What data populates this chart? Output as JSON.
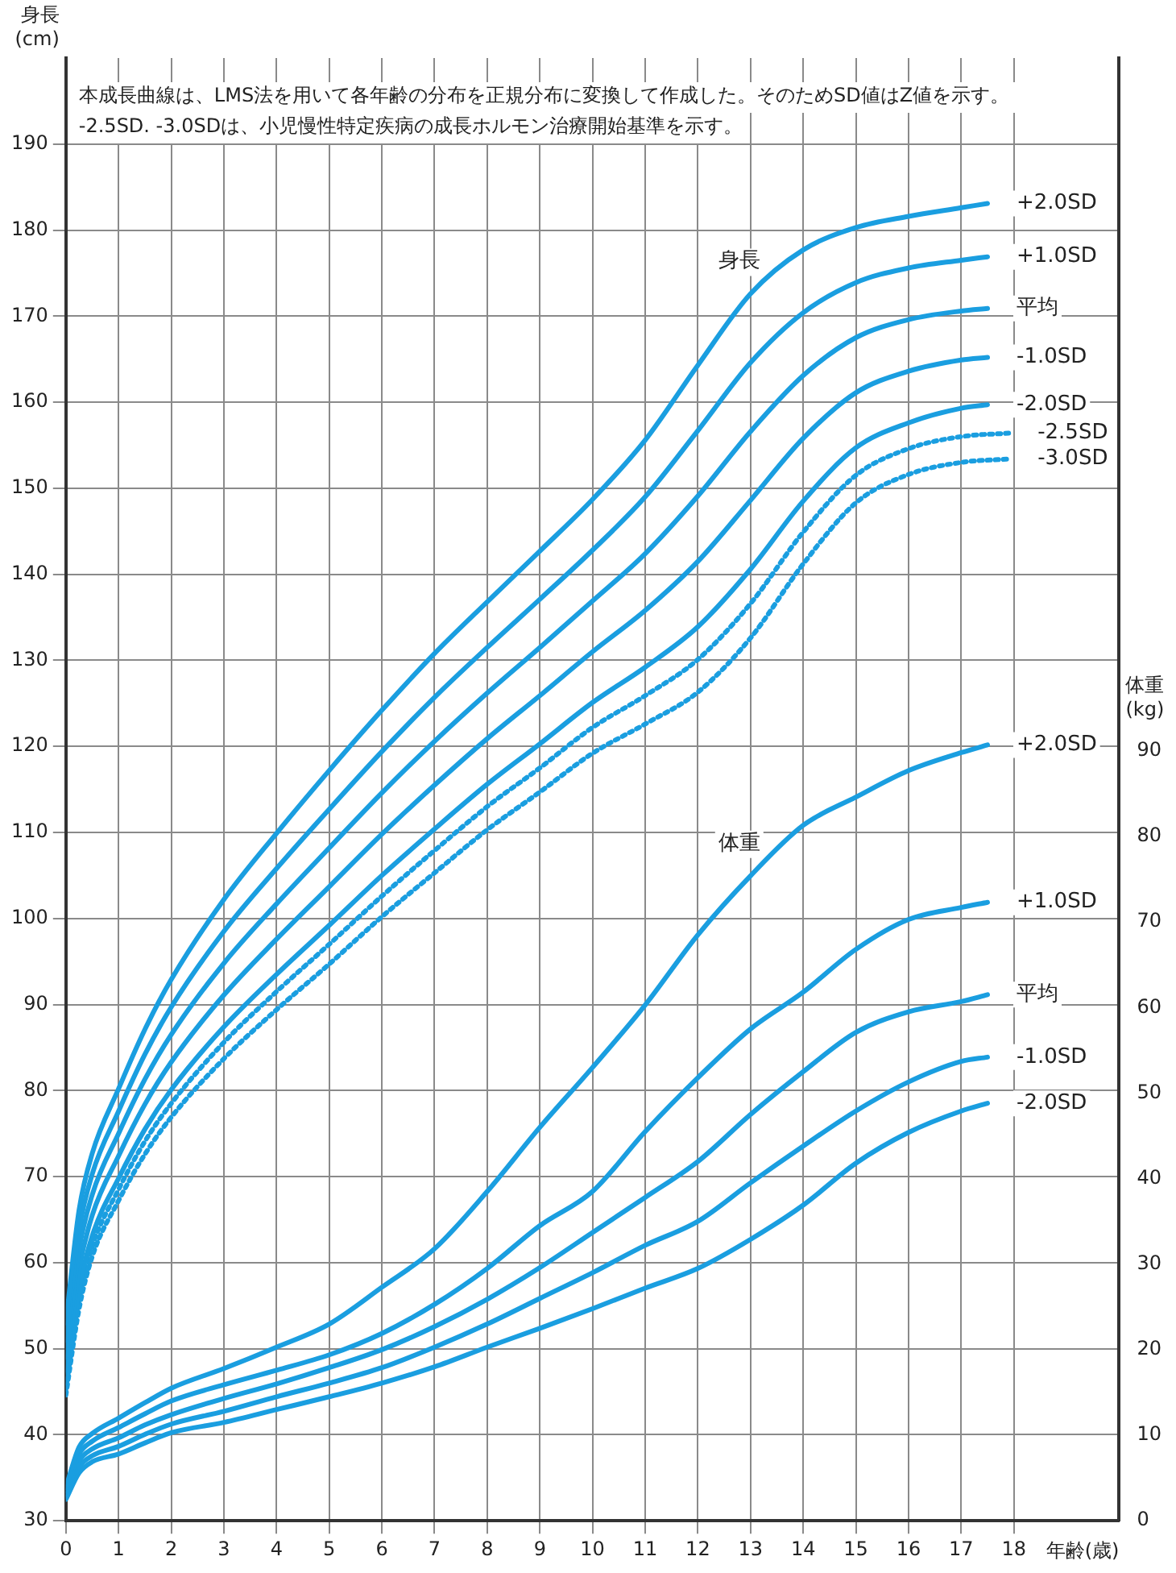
{
  "chart_data": {
    "type": "line",
    "ylabel": "身長(cm)",
    "y2label": "体重(kg)",
    "xlabel": "年齢(歳)",
    "annotations": [
      "本成長曲線は、LMS法を用いて各年齢の分布を正規分布に変換して作成した。そのためSD値はZ値を示す。",
      "-2.5SD. -3.0SDは、小児慢性特定疾病の成長ホルモン治療開始基準を示す。",
      "身長",
      "体重"
    ],
    "x": [
      0,
      0.25,
      0.5,
      1,
      1.5,
      2,
      3,
      4,
      5,
      6,
      7,
      8,
      9,
      10,
      11,
      12,
      13,
      14,
      15,
      16,
      17,
      17.5
    ],
    "xlim": [
      0,
      20
    ],
    "xticks": [
      0,
      1,
      2,
      3,
      4,
      5,
      6,
      7,
      8,
      9,
      10,
      11,
      12,
      13,
      14,
      15,
      16,
      17,
      18
    ],
    "ylim": [
      30,
      200
    ],
    "yticks": [
      30,
      40,
      50,
      60,
      70,
      80,
      90,
      100,
      110,
      120,
      130,
      140,
      150,
      160,
      170,
      180,
      190
    ],
    "y2lim": [
      0,
      171
    ],
    "y2ticks": [
      0,
      10,
      20,
      30,
      40,
      50,
      60,
      70,
      80,
      90
    ],
    "grid": true,
    "legend": false,
    "marker": "none",
    "series": [
      {
        "name": "+2.0SD",
        "color": "#1a9ee0",
        "values": [
          53.0,
          66.1,
          72.7,
          80.2,
          87.1,
          92.9,
          102.2,
          109.9,
          117.2,
          124.2,
          130.8,
          136.8,
          142.7,
          148.7,
          155.6,
          164.3,
          172.6,
          177.7,
          180.3,
          181.6,
          182.6,
          183.1
        ]
      },
      {
        "name": "+1.0SD",
        "color": "#1a9ee0",
        "values": [
          51.0,
          63.8,
          70.3,
          77.6,
          84.2,
          89.7,
          98.5,
          105.8,
          112.7,
          119.4,
          125.7,
          131.5,
          137.1,
          142.8,
          149.0,
          156.7,
          164.6,
          170.4,
          173.9,
          175.6,
          176.5,
          176.9
        ]
      },
      {
        "name": "平均",
        "color": "#1a9ee0",
        "values": [
          49.0,
          61.5,
          67.9,
          75.0,
          81.3,
          86.5,
          94.8,
          101.7,
          108.2,
          114.6,
          120.6,
          126.2,
          131.5,
          136.9,
          142.4,
          149.1,
          156.6,
          163.1,
          167.5,
          169.6,
          170.6,
          170.9
        ]
      },
      {
        "name": "-1.0SD",
        "color": "#1a9ee0",
        "values": [
          47.5,
          59.2,
          65.5,
          72.4,
          78.4,
          83.3,
          91.1,
          97.6,
          103.7,
          109.8,
          115.5,
          120.9,
          125.9,
          131.0,
          135.8,
          141.5,
          148.6,
          155.8,
          161.1,
          163.6,
          164.9,
          165.2
        ]
      },
      {
        "name": "-2.0SD",
        "color": "#1a9ee0",
        "values": [
          46.0,
          56.9,
          63.1,
          69.8,
          75.5,
          80.1,
          87.4,
          93.5,
          99.2,
          105.0,
          110.4,
          115.6,
          120.3,
          125.1,
          129.2,
          133.9,
          140.6,
          148.5,
          154.7,
          157.6,
          159.3,
          159.7
        ]
      },
      {
        "name": "-2.5SD",
        "color": "#1a9ee0",
        "line_style": "dotted",
        "x": [
          0,
          0.25,
          0.5,
          1,
          1.5,
          2,
          3,
          4,
          5,
          6,
          7,
          8,
          9,
          10,
          11,
          12,
          13,
          14,
          15,
          16,
          17,
          17.9
        ],
        "values": [
          45.3,
          55.8,
          61.9,
          68.5,
          74.1,
          78.5,
          85.6,
          91.5,
          97.0,
          102.6,
          107.9,
          113.0,
          117.5,
          122.2,
          125.9,
          130.1,
          136.6,
          144.9,
          151.5,
          154.6,
          156.0,
          156.4
        ]
      },
      {
        "name": "-3.0SD",
        "color": "#1a9ee0",
        "line_style": "dotted",
        "x": [
          0,
          0.25,
          0.5,
          1,
          1.5,
          2,
          3,
          4,
          5,
          6,
          7,
          8,
          9,
          10,
          11,
          12,
          13,
          14,
          15,
          16,
          17,
          17.9
        ],
        "values": [
          44.6,
          54.6,
          60.7,
          67.2,
          72.6,
          76.9,
          83.7,
          89.4,
          94.7,
          100.2,
          105.3,
          110.3,
          114.7,
          119.2,
          122.6,
          126.3,
          132.6,
          141.2,
          148.3,
          151.6,
          153.0,
          153.4
        ]
      },
      {
        "name": "+2.0SD",
        "color": "#1a9ee0",
        "axis": "y2",
        "values": [
          3.9,
          8.6,
          10.2,
          12.0,
          13.8,
          15.5,
          17.8,
          20.3,
          23.0,
          27.3,
          31.8,
          38.5,
          46.0,
          53.0,
          60.3,
          68.5,
          75.4,
          81.3,
          84.6,
          87.7,
          89.8,
          90.7
        ]
      },
      {
        "name": "+1.0SD",
        "color": "#1a9ee0",
        "axis": "y2",
        "values": [
          3.5,
          7.8,
          9.3,
          10.9,
          12.5,
          14.0,
          15.9,
          17.6,
          19.4,
          21.9,
          25.3,
          29.5,
          34.5,
          38.5,
          45.5,
          51.8,
          57.5,
          61.8,
          66.8,
          70.3,
          71.7,
          72.3
        ]
      },
      {
        "name": "平均",
        "color": "#1a9ee0",
        "axis": "y2",
        "values": [
          3.1,
          7.0,
          8.4,
          9.7,
          11.2,
          12.4,
          14.3,
          16.0,
          17.9,
          20.0,
          22.7,
          25.9,
          29.6,
          33.7,
          37.8,
          42.0,
          47.5,
          52.5,
          57.1,
          59.5,
          60.7,
          61.5
        ]
      },
      {
        "name": "-1.0SD",
        "color": "#1a9ee0",
        "axis": "y2",
        "values": [
          2.8,
          6.3,
          7.6,
          8.7,
          10.1,
          11.3,
          12.8,
          14.5,
          16.1,
          17.9,
          20.3,
          23.0,
          26.0,
          29.0,
          32.2,
          35.0,
          39.5,
          43.8,
          47.9,
          51.3,
          53.7,
          54.2
        ]
      },
      {
        "name": "-2.0SD",
        "color": "#1a9ee0",
        "axis": "y2",
        "values": [
          2.5,
          5.6,
          6.9,
          7.8,
          9.1,
          10.3,
          11.5,
          13.0,
          14.5,
          16.1,
          18.0,
          20.3,
          22.5,
          24.8,
          27.2,
          29.5,
          32.9,
          36.9,
          41.8,
          45.4,
          47.9,
          48.8
        ]
      }
    ]
  }
}
